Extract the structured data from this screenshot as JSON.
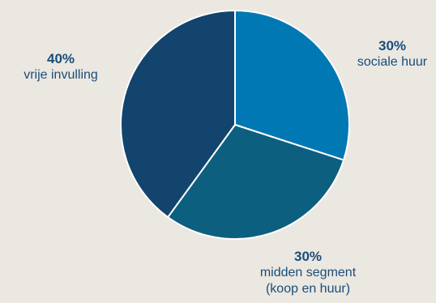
{
  "chart_data": {
    "type": "pie",
    "title": "",
    "slices": [
      {
        "value": 30,
        "pct_label": "30%",
        "label_lines": [
          "sociale huur"
        ],
        "color": "#0078b4"
      },
      {
        "value": 30,
        "pct_label": "30%",
        "label_lines": [
          "midden segment",
          "(koop en huur)"
        ],
        "color": "#0d5f80"
      },
      {
        "value": 40,
        "pct_label": "40%",
        "label_lines": [
          "vrije invulling"
        ],
        "color": "#12446e"
      }
    ],
    "start_angle": "12 o'clock",
    "direction": "clockwise",
    "legend": "none",
    "background": "#ebe7e1",
    "slice_border": "#ffffff"
  }
}
